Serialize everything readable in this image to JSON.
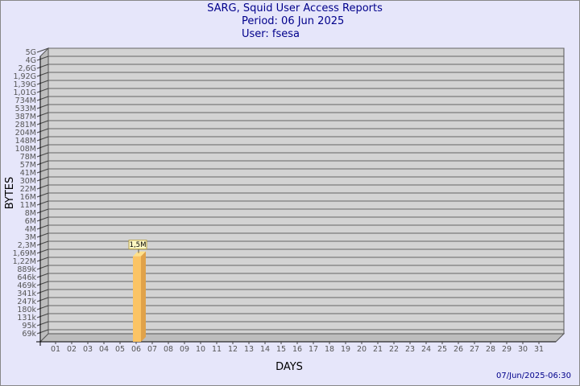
{
  "chart_data": {
    "type": "bar",
    "title": "SARG, Squid User Access Reports",
    "subtitle": [
      "Period: 06 Jun 2025",
      "User: fsesa"
    ],
    "xlabel": "DAYS",
    "ylabel": "BYTES",
    "y_scale": "log",
    "grid": true,
    "categories": [
      "01",
      "02",
      "03",
      "04",
      "05",
      "06",
      "07",
      "08",
      "09",
      "10",
      "11",
      "12",
      "13",
      "14",
      "15",
      "16",
      "17",
      "18",
      "19",
      "20",
      "21",
      "22",
      "23",
      "24",
      "25",
      "26",
      "27",
      "28",
      "29",
      "30",
      "31"
    ],
    "y_ticks": [
      "5G",
      "4G",
      "2,6G",
      "1,92G",
      "1,39G",
      "1,01G",
      "734M",
      "533M",
      "387M",
      "281M",
      "204M",
      "148M",
      "108M",
      "78M",
      "57M",
      "41M",
      "30M",
      "22M",
      "16M",
      "11M",
      "8M",
      "6M",
      "4M",
      "3M",
      "2,3M",
      "1,69M",
      "1,22M",
      "889k",
      "646k",
      "469k",
      "341k",
      "247k",
      "180k",
      "131k",
      "95k",
      "69k"
    ],
    "bars": [
      {
        "category": "06",
        "value": 1500000,
        "label": "1,5M"
      }
    ],
    "footer_timestamp": "07/Jun/2025-06:30",
    "colors": {
      "background": "#e6e6fa",
      "plot": "#d3d3d3",
      "bar": "#fbc465",
      "bar_side": "#e0a24a",
      "title": "#00008b"
    }
  }
}
